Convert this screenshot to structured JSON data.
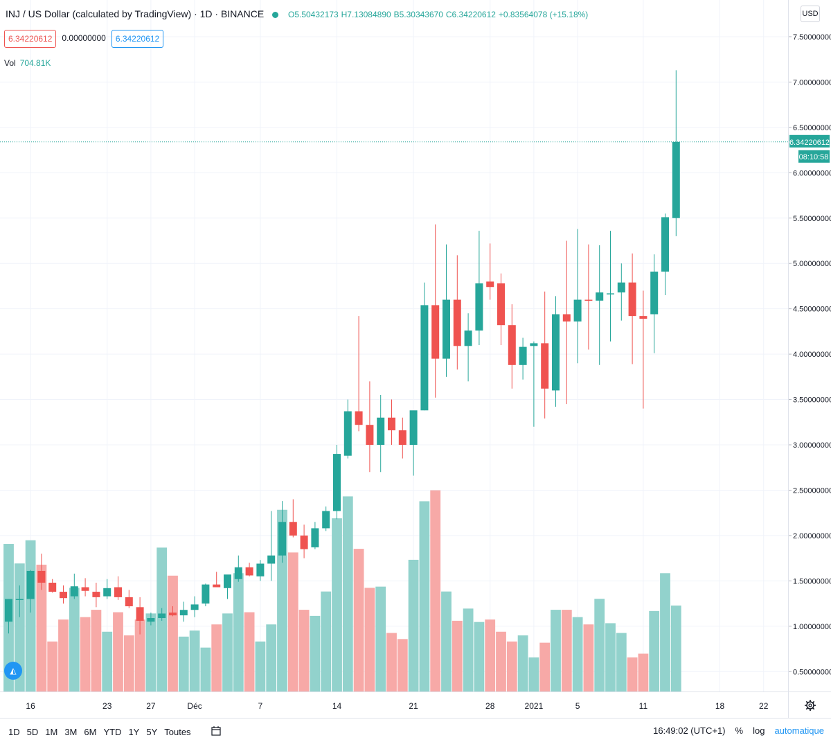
{
  "header": {
    "symbol": "INJ / US Dollar (calculated by TradingView) · 1D · BINANCE",
    "open": "O5.50432173",
    "high": "H7.13084890",
    "low": "B5.30343670",
    "close": "C6.34220612",
    "change": "+0.83564078 (+15.18%)",
    "value_bid": "6.34220612",
    "value_zero": "0.00000000",
    "value_ask": "6.34220612",
    "vol_label": "Vol",
    "vol_value": "704.81K",
    "currency_button": "USD"
  },
  "price_axis": {
    "current_price": "6.34220612",
    "countdown": "08:10:58"
  },
  "bottom_bar": {
    "ranges": [
      "1D",
      "5D",
      "1M",
      "3M",
      "6M",
      "YTD",
      "1Y",
      "5Y",
      "Toutes"
    ],
    "time": "16:49:02 (UTC+1)",
    "percent": "%",
    "log": "log",
    "auto": "automatique"
  },
  "colors": {
    "up": "#26a69a",
    "down": "#ef5350",
    "up_vol": "#92d2cc",
    "down_vol": "#f7a9a7",
    "grid": "#f0f3fa"
  },
  "chart_data": {
    "type": "candlestick",
    "symbol": "INJ / US Dollar",
    "y_ticks": [
      "0.50000000",
      "1.00000000",
      "1.50000000",
      "2.00000000",
      "2.50000000",
      "3.00000000",
      "3.50000000",
      "4.00000000",
      "4.50000000",
      "5.00000000",
      "5.50000000",
      "6.00000000",
      "6.50000000",
      "7.00000000",
      "7.50000000"
    ],
    "x_ticks": [
      {
        "index": 2,
        "label": "16"
      },
      {
        "index": 9,
        "label": "23"
      },
      {
        "index": 13,
        "label": "27"
      },
      {
        "index": 17,
        "label": "Déc"
      },
      {
        "index": 23,
        "label": "7"
      },
      {
        "index": 30,
        "label": "14"
      },
      {
        "index": 37,
        "label": "21"
      },
      {
        "index": 44,
        "label": "28"
      },
      {
        "index": 48,
        "label": "2021"
      },
      {
        "index": 52,
        "label": "5"
      },
      {
        "index": 58,
        "label": "11"
      },
      {
        "index": 65,
        "label": "18"
      },
      {
        "index": 69,
        "label": "22"
      }
    ],
    "candles": [
      {
        "o": 1.05,
        "h": 1.3,
        "l": 0.92,
        "c": 1.3
      },
      {
        "o": 1.3,
        "h": 1.45,
        "l": 1.1,
        "c": 1.3
      },
      {
        "o": 1.3,
        "h": 1.62,
        "l": 1.15,
        "c": 1.61
      },
      {
        "o": 1.61,
        "h": 1.8,
        "l": 1.4,
        "c": 1.48
      },
      {
        "o": 1.48,
        "h": 1.52,
        "l": 1.37,
        "c": 1.38
      },
      {
        "o": 1.38,
        "h": 1.45,
        "l": 1.25,
        "c": 1.31
      },
      {
        "o": 1.33,
        "h": 1.58,
        "l": 1.3,
        "c": 1.44
      },
      {
        "o": 1.43,
        "h": 1.53,
        "l": 1.33,
        "c": 1.39
      },
      {
        "o": 1.38,
        "h": 1.48,
        "l": 1.21,
        "c": 1.32
      },
      {
        "o": 1.33,
        "h": 1.52,
        "l": 1.3,
        "c": 1.42
      },
      {
        "o": 1.43,
        "h": 1.55,
        "l": 1.29,
        "c": 1.32
      },
      {
        "o": 1.32,
        "h": 1.4,
        "l": 1.2,
        "c": 1.22
      },
      {
        "o": 1.21,
        "h": 1.32,
        "l": 0.91,
        "c": 1.06
      },
      {
        "o": 1.05,
        "h": 1.15,
        "l": 1.01,
        "c": 1.09
      },
      {
        "o": 1.09,
        "h": 1.2,
        "l": 1.06,
        "c": 1.14
      },
      {
        "o": 1.15,
        "h": 1.22,
        "l": 1.11,
        "c": 1.12
      },
      {
        "o": 1.12,
        "h": 1.27,
        "l": 1.05,
        "c": 1.18
      },
      {
        "o": 1.18,
        "h": 1.33,
        "l": 1.1,
        "c": 1.24
      },
      {
        "o": 1.25,
        "h": 1.47,
        "l": 1.22,
        "c": 1.46
      },
      {
        "o": 1.46,
        "h": 1.6,
        "l": 1.44,
        "c": 1.43
      },
      {
        "o": 1.42,
        "h": 1.52,
        "l": 1.3,
        "c": 1.57
      },
      {
        "o": 1.52,
        "h": 1.78,
        "l": 1.49,
        "c": 1.65
      },
      {
        "o": 1.65,
        "h": 1.7,
        "l": 1.55,
        "c": 1.56
      },
      {
        "o": 1.55,
        "h": 1.73,
        "l": 1.5,
        "c": 1.69
      },
      {
        "o": 1.69,
        "h": 2.27,
        "l": 1.5,
        "c": 1.78
      },
      {
        "o": 1.78,
        "h": 2.38,
        "l": 1.7,
        "c": 2.15
      },
      {
        "o": 2.15,
        "h": 2.4,
        "l": 1.98,
        "c": 2.0
      },
      {
        "o": 2.0,
        "h": 2.12,
        "l": 1.75,
        "c": 1.85
      },
      {
        "o": 1.87,
        "h": 2.15,
        "l": 1.85,
        "c": 2.08
      },
      {
        "o": 2.08,
        "h": 2.32,
        "l": 2.05,
        "c": 2.27
      },
      {
        "o": 2.27,
        "h": 3.0,
        "l": 2.18,
        "c": 2.9
      },
      {
        "o": 2.88,
        "h": 3.5,
        "l": 2.85,
        "c": 3.37
      },
      {
        "o": 3.37,
        "h": 4.42,
        "l": 3.15,
        "c": 3.22
      },
      {
        "o": 3.22,
        "h": 3.7,
        "l": 2.7,
        "c": 3.0
      },
      {
        "o": 3.0,
        "h": 3.55,
        "l": 2.7,
        "c": 3.3
      },
      {
        "o": 3.3,
        "h": 3.5,
        "l": 3.0,
        "c": 3.16
      },
      {
        "o": 3.16,
        "h": 3.3,
        "l": 2.85,
        "c": 3.0
      },
      {
        "o": 3.0,
        "h": 3.37,
        "l": 2.66,
        "c": 3.38
      },
      {
        "o": 3.38,
        "h": 4.79,
        "l": 3.38,
        "c": 4.54
      },
      {
        "o": 4.54,
        "h": 5.43,
        "l": 3.52,
        "c": 3.95
      },
      {
        "o": 3.95,
        "h": 5.21,
        "l": 3.75,
        "c": 4.6
      },
      {
        "o": 4.6,
        "h": 5.09,
        "l": 3.83,
        "c": 4.09
      },
      {
        "o": 4.09,
        "h": 4.45,
        "l": 3.7,
        "c": 4.26
      },
      {
        "o": 4.26,
        "h": 5.36,
        "l": 4.1,
        "c": 4.78
      },
      {
        "o": 4.8,
        "h": 5.22,
        "l": 4.6,
        "c": 4.74
      },
      {
        "o": 4.78,
        "h": 4.89,
        "l": 4.1,
        "c": 4.32
      },
      {
        "o": 4.32,
        "h": 4.55,
        "l": 3.62,
        "c": 3.88
      },
      {
        "o": 3.88,
        "h": 4.18,
        "l": 3.72,
        "c": 4.08
      },
      {
        "o": 4.09,
        "h": 4.14,
        "l": 3.2,
        "c": 4.12
      },
      {
        "o": 4.12,
        "h": 4.69,
        "l": 3.29,
        "c": 3.62
      },
      {
        "o": 3.6,
        "h": 4.64,
        "l": 3.42,
        "c": 4.44
      },
      {
        "o": 4.44,
        "h": 5.25,
        "l": 3.45,
        "c": 4.36
      },
      {
        "o": 4.36,
        "h": 5.38,
        "l": 3.9,
        "c": 4.6
      },
      {
        "o": 4.6,
        "h": 5.21,
        "l": 4.05,
        "c": 4.59
      },
      {
        "o": 4.59,
        "h": 5.2,
        "l": 3.88,
        "c": 4.68
      },
      {
        "o": 4.67,
        "h": 5.36,
        "l": 4.14,
        "c": 4.67
      },
      {
        "o": 4.68,
        "h": 5.0,
        "l": 4.37,
        "c": 4.79
      },
      {
        "o": 4.79,
        "h": 5.11,
        "l": 3.89,
        "c": 4.42
      },
      {
        "o": 4.42,
        "h": 4.7,
        "l": 3.4,
        "c": 4.39
      },
      {
        "o": 4.44,
        "h": 5.1,
        "l": 4.01,
        "c": 4.91
      },
      {
        "o": 4.91,
        "h": 5.55,
        "l": 4.65,
        "c": 5.51
      },
      {
        "o": 5.5,
        "h": 7.13,
        "l": 5.3,
        "c": 6.34
      }
    ],
    "volume_k": [
      1210,
      1050,
      1240,
      1040,
      410,
      590,
      850,
      610,
      670,
      490,
      650,
      460,
      590,
      640,
      1180,
      950,
      450,
      500,
      360,
      550,
      640,
      970,
      650,
      410,
      550,
      1490,
      1140,
      670,
      620,
      820,
      1420,
      1600,
      1170,
      850,
      860,
      480,
      430,
      1080,
      1560,
      1650,
      820,
      580,
      680,
      570,
      590,
      490,
      410,
      460,
      280,
      400,
      670,
      670,
      610,
      550,
      760,
      560,
      480,
      280,
      310,
      660,
      970,
      705
    ]
  }
}
